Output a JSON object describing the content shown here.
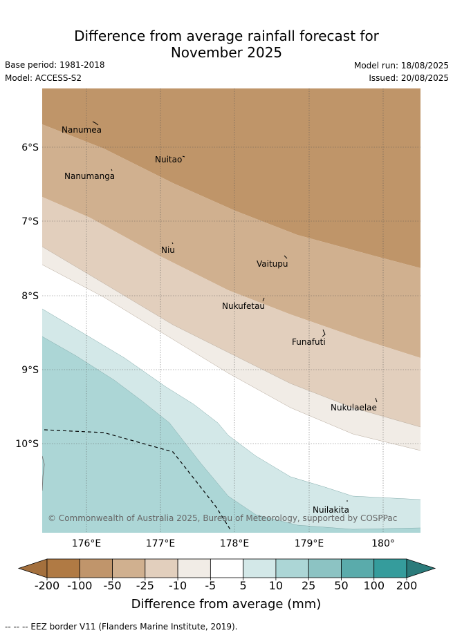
{
  "header": {
    "title_line1": "Difference from average rainfall forecast for",
    "title_line2": "November 2025",
    "base_period": "Base period: 1981-2018",
    "model": "Model: ACCESS-S2",
    "model_run": "Model run: 18/08/2025",
    "issued": "Issued: 20/08/2025"
  },
  "map": {
    "lat_labels": [
      "6°S",
      "7°S",
      "8°S",
      "9°S",
      "10°S"
    ],
    "lon_labels": [
      "176°E",
      "177°E",
      "178°E",
      "179°E",
      "180°"
    ],
    "islands": [
      {
        "name": "Nanumea",
        "label": "Nanumea"
      },
      {
        "name": "Nuitao",
        "label": "Nuitao"
      },
      {
        "name": "Nanumanga",
        "label": "Nanumanga"
      },
      {
        "name": "Niu",
        "label": "Niu"
      },
      {
        "name": "Vaitupu",
        "label": "Vaitupu"
      },
      {
        "name": "Nukufetau",
        "label": "Nukufetau"
      },
      {
        "name": "Funafuti",
        "label": "Funafuti"
      },
      {
        "name": "Nukulaelae",
        "label": "Nukulaelae"
      },
      {
        "name": "Nuilakita",
        "label": "Nuilakita"
      }
    ],
    "copyright": "© Commonwealth of Australia 2025, Bureau of Meteorology, supported by COSPPac"
  },
  "colorbar": {
    "ticks": [
      "-200",
      "-100",
      "-50",
      "-25",
      "-10",
      "-5",
      "5",
      "10",
      "25",
      "50",
      "100",
      "200"
    ],
    "colors": [
      "#a4703d",
      "#b07a44",
      "#c0956b",
      "#d0b08f",
      "#e2cfbd",
      "#f1ece6",
      "#ffffff",
      "#d3e8e8",
      "#acd6d6",
      "#8cc3c3",
      "#5aabab",
      "#359c9c",
      "#2b7b7b"
    ],
    "label": "Difference from average (mm)"
  },
  "footnote": "--  --  -- EEZ border V11 (Flanders Marine Institute, 2019)."
}
